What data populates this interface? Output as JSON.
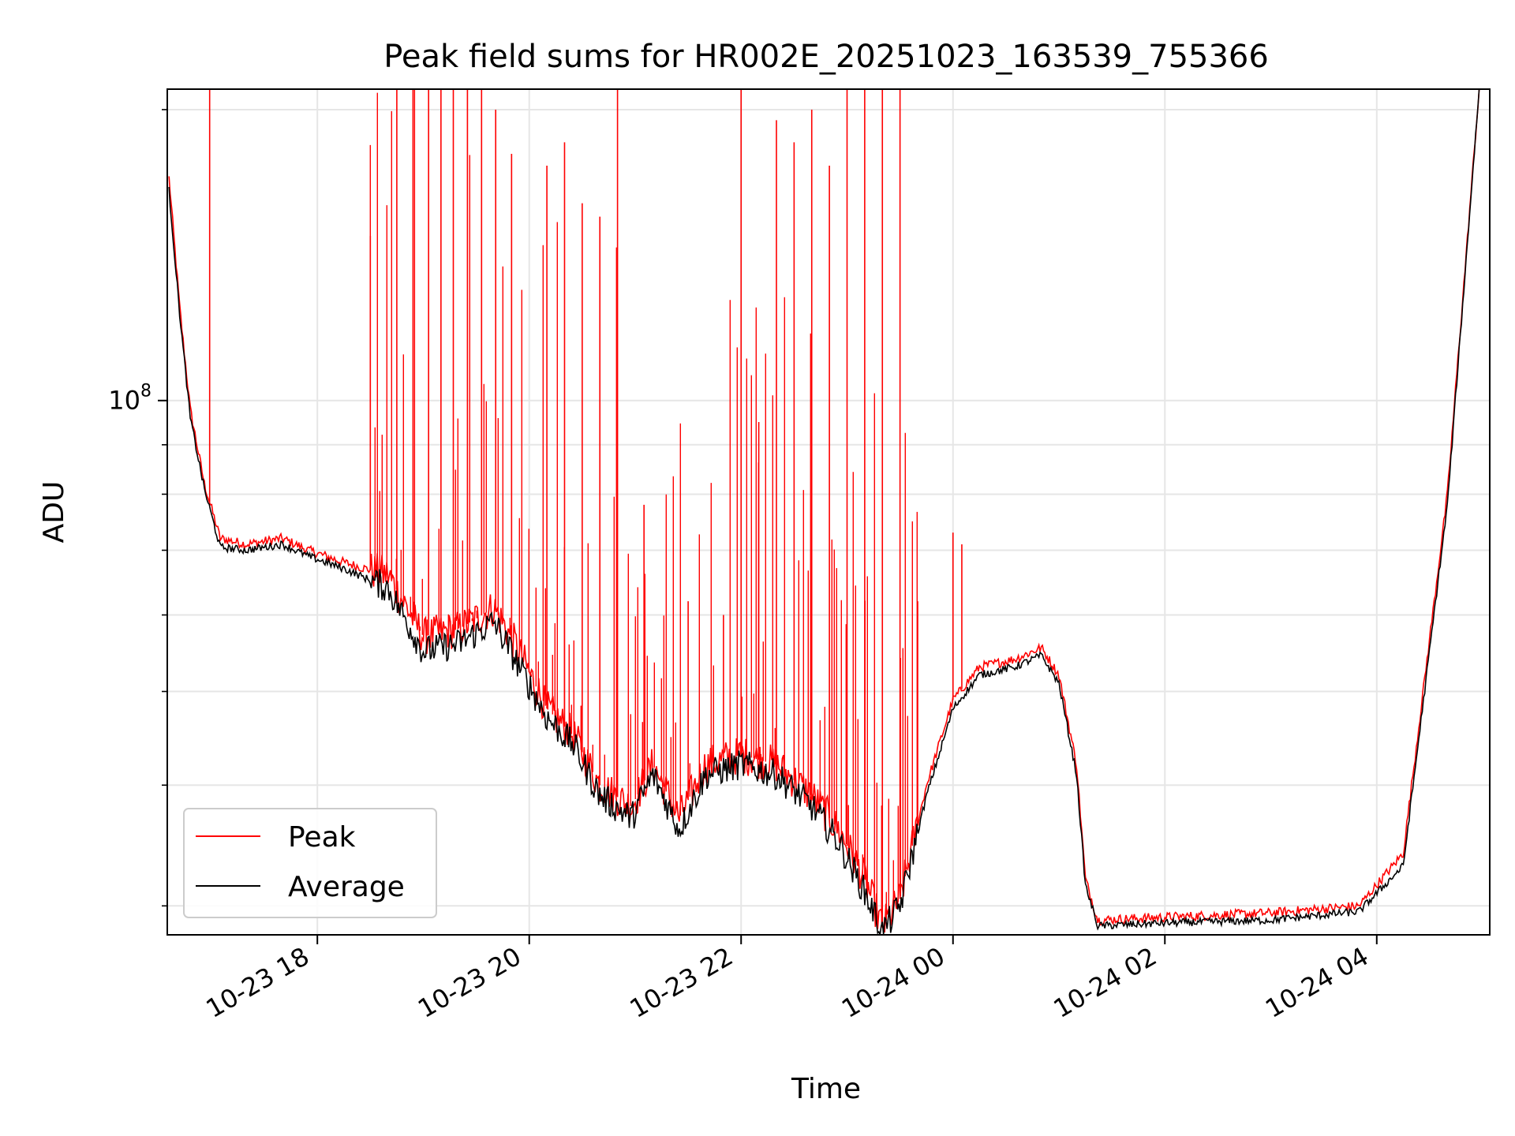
{
  "chart_data": {
    "type": "line",
    "title": "Peak field sums for HR002E_20251023_163539_755366",
    "xlabel": "Time",
    "ylabel": "ADU",
    "y_scale": "log",
    "ylim": [
      28000000,
      210000000
    ],
    "xlim": [
      "2025-10-23 16:35",
      "2025-10-24 05:04"
    ],
    "x_ticks": [
      "10-23 18",
      "10-23 20",
      "10-23 22",
      "10-24 00",
      "10-24 02",
      "10-24 04"
    ],
    "y_ticks": [
      {
        "value": 100000000,
        "base": "10",
        "exp": "8"
      }
    ],
    "grid": true,
    "legend_position": "lower-left",
    "colors": {
      "peak": "#ff0000",
      "average": "#000000"
    },
    "series": [
      {
        "name": "Peak",
        "color": "#ff0000",
        "anchors": [
          [
            "2025-10-23 16:36",
            170000000
          ],
          [
            "2025-10-23 16:42",
            125000000
          ],
          [
            "2025-10-23 16:48",
            98000000
          ],
          [
            "2025-10-23 16:56",
            82000000
          ],
          [
            "2025-10-23 17:05",
            72000000
          ],
          [
            "2025-10-23 17:20",
            71000000
          ],
          [
            "2025-10-23 17:40",
            72000000
          ],
          [
            "2025-10-23 17:55",
            70000000
          ],
          [
            "2025-10-23 18:15",
            68000000
          ],
          [
            "2025-10-23 18:40",
            66000000
          ],
          [
            "2025-10-23 19:00",
            57000000
          ],
          [
            "2025-10-23 19:20",
            58000000
          ],
          [
            "2025-10-23 19:40",
            61000000
          ],
          [
            "2025-10-23 19:52",
            56000000
          ],
          [
            "2025-10-23 20:10",
            48000000
          ],
          [
            "2025-10-23 20:25",
            45000000
          ],
          [
            "2025-10-23 20:40",
            40000000
          ],
          [
            "2025-10-23 20:58",
            38000000
          ],
          [
            "2025-10-23 21:10",
            42000000
          ],
          [
            "2025-10-23 21:25",
            37000000
          ],
          [
            "2025-10-23 21:40",
            42000000
          ],
          [
            "2025-10-23 22:00",
            43000000
          ],
          [
            "2025-10-23 22:20",
            42000000
          ],
          [
            "2025-10-23 22:40",
            39000000
          ],
          [
            "2025-10-23 22:55",
            36000000
          ],
          [
            "2025-10-23 23:10",
            32000000
          ],
          [
            "2025-10-23 23:20",
            28500000
          ],
          [
            "2025-10-23 23:30",
            30500000
          ],
          [
            "2025-10-23 23:45",
            40000000
          ],
          [
            "2025-10-24 00:00",
            49000000
          ],
          [
            "2025-10-24 00:15",
            53000000
          ],
          [
            "2025-10-24 00:35",
            54000000
          ],
          [
            "2025-10-24 00:50",
            55500000
          ],
          [
            "2025-10-24 01:00",
            52000000
          ],
          [
            "2025-10-24 01:10",
            42000000
          ],
          [
            "2025-10-24 01:15",
            32000000
          ],
          [
            "2025-10-24 01:22",
            29000000
          ],
          [
            "2025-10-24 02:00",
            29200000
          ],
          [
            "2025-10-24 03:00",
            29500000
          ],
          [
            "2025-10-24 03:50",
            30000000
          ],
          [
            "2025-10-24 04:15",
            34000000
          ],
          [
            "2025-10-24 04:40",
            80000000
          ],
          [
            "2025-10-24 04:58",
            210000000
          ]
        ],
        "spikes": [
          [
            "2025-10-23 16:59",
            210000000
          ],
          [
            "2025-10-23 18:30",
            148000000
          ],
          [
            "2025-10-23 18:45",
            210000000
          ],
          [
            "2025-10-23 18:55",
            210000000
          ],
          [
            "2025-10-23 19:03",
            210000000
          ],
          [
            "2025-10-23 19:10",
            210000000
          ],
          [
            "2025-10-23 19:17",
            210000000
          ],
          [
            "2025-10-23 19:25",
            210000000
          ],
          [
            "2025-10-23 19:33",
            210000000
          ],
          [
            "2025-10-23 19:41",
            200000000
          ],
          [
            "2025-10-23 19:50",
            180000000
          ],
          [
            "2025-10-23 20:10",
            175000000
          ],
          [
            "2025-10-23 20:20",
            185000000
          ],
          [
            "2025-10-23 20:30",
            160000000
          ],
          [
            "2025-10-23 20:40",
            155000000
          ],
          [
            "2025-10-23 20:50",
            210000000
          ],
          [
            "2025-10-23 21:05",
            78000000
          ],
          [
            "2025-10-23 21:30",
            62000000
          ],
          [
            "2025-10-23 21:50",
            60000000
          ],
          [
            "2025-10-23 22:00",
            210000000
          ],
          [
            "2025-10-23 22:10",
            95000000
          ],
          [
            "2025-10-23 22:20",
            195000000
          ],
          [
            "2025-10-23 22:30",
            185000000
          ],
          [
            "2025-10-23 22:40",
            200000000
          ],
          [
            "2025-10-23 22:50",
            175000000
          ],
          [
            "2025-10-23 23:00",
            210000000
          ],
          [
            "2025-10-23 23:10",
            210000000
          ],
          [
            "2025-10-23 23:20",
            210000000
          ],
          [
            "2025-10-23 23:30",
            210000000
          ],
          [
            "2025-10-23 23:40",
            62000000
          ],
          [
            "2025-10-24 00:00",
            73000000
          ],
          [
            "2025-10-24 00:05",
            71000000
          ]
        ]
      },
      {
        "name": "Average",
        "color": "#000000",
        "anchors": [
          [
            "2025-10-23 16:36",
            165000000
          ],
          [
            "2025-10-23 16:42",
            123000000
          ],
          [
            "2025-10-23 16:48",
            96000000
          ],
          [
            "2025-10-23 16:56",
            81000000
          ],
          [
            "2025-10-23 17:05",
            70500000
          ],
          [
            "2025-10-23 17:20",
            70000000
          ],
          [
            "2025-10-23 17:40",
            71000000
          ],
          [
            "2025-10-23 17:55",
            69000000
          ],
          [
            "2025-10-23 18:15",
            67000000
          ],
          [
            "2025-10-23 18:40",
            64000000
          ],
          [
            "2025-10-23 19:00",
            55000000
          ],
          [
            "2025-10-23 19:20",
            56000000
          ],
          [
            "2025-10-23 19:40",
            59000000
          ],
          [
            "2025-10-23 19:52",
            54000000
          ],
          [
            "2025-10-23 20:10",
            47000000
          ],
          [
            "2025-10-23 20:25",
            44000000
          ],
          [
            "2025-10-23 20:40",
            39000000
          ],
          [
            "2025-10-23 20:58",
            37000000
          ],
          [
            "2025-10-23 21:10",
            41000000
          ],
          [
            "2025-10-23 21:25",
            36000000
          ],
          [
            "2025-10-23 21:40",
            41000000
          ],
          [
            "2025-10-23 22:00",
            42000000
          ],
          [
            "2025-10-23 22:20",
            41000000
          ],
          [
            "2025-10-23 22:40",
            38000000
          ],
          [
            "2025-10-23 22:55",
            35000000
          ],
          [
            "2025-10-23 23:10",
            31000000
          ],
          [
            "2025-10-23 23:20",
            28200000
          ],
          [
            "2025-10-23 23:30",
            30000000
          ],
          [
            "2025-10-23 23:45",
            39000000
          ],
          [
            "2025-10-24 00:00",
            48000000
          ],
          [
            "2025-10-24 00:15",
            52000000
          ],
          [
            "2025-10-24 00:35",
            53000000
          ],
          [
            "2025-10-24 00:50",
            54500000
          ],
          [
            "2025-10-24 01:00",
            51000000
          ],
          [
            "2025-10-24 01:10",
            41000000
          ],
          [
            "2025-10-24 01:15",
            31500000
          ],
          [
            "2025-10-24 01:22",
            28600000
          ],
          [
            "2025-10-24 02:00",
            28800000
          ],
          [
            "2025-10-24 03:00",
            29000000
          ],
          [
            "2025-10-24 03:50",
            29600000
          ],
          [
            "2025-10-24 04:15",
            33000000
          ],
          [
            "2025-10-24 04:40",
            78000000
          ],
          [
            "2025-10-24 04:58",
            210000000
          ]
        ]
      }
    ]
  }
}
